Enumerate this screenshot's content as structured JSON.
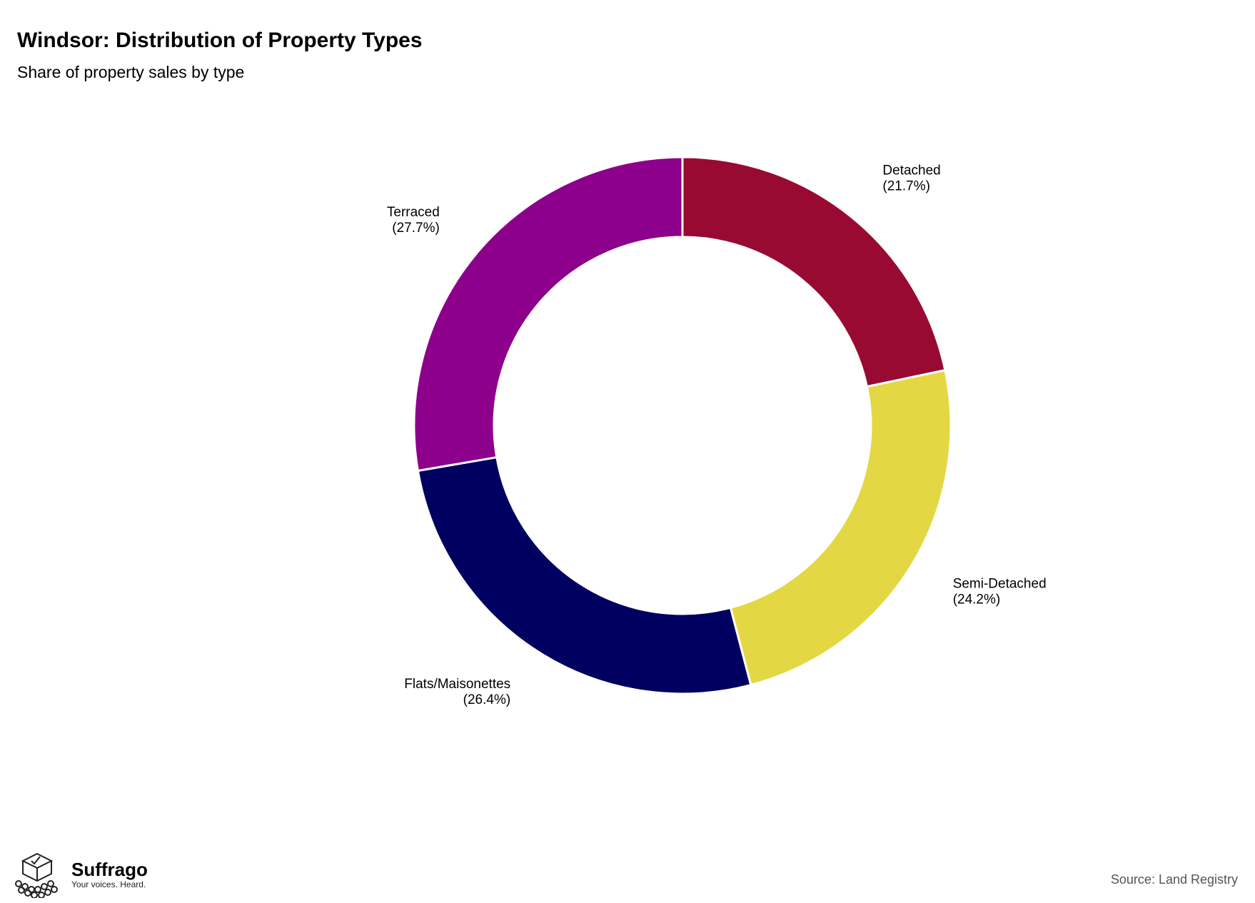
{
  "chart_data": {
    "type": "pie",
    "style": "donut",
    "title": "Windsor: Distribution of Property Types",
    "subtitle": "Share of property sales by type",
    "categories": [
      "Detached",
      "Semi-Detached",
      "Flats/Maisonettes",
      "Terraced"
    ],
    "values": [
      21.7,
      24.2,
      26.4,
      27.7
    ],
    "labels": [
      "(21.7%)",
      "(24.2%)",
      "(26.4%)",
      "(27.7%)"
    ],
    "colors": [
      "#990a32",
      "#e3d843",
      "#000060",
      "#8c008c"
    ],
    "start": "12 o'clock",
    "direction": "clockwise",
    "legend": "none (direct labels)"
  },
  "source": "Source: Land Registry",
  "brand": {
    "name": "Suffrago",
    "tagline": "Your voices. Heard.",
    "icon": "ballot-box-icon"
  }
}
